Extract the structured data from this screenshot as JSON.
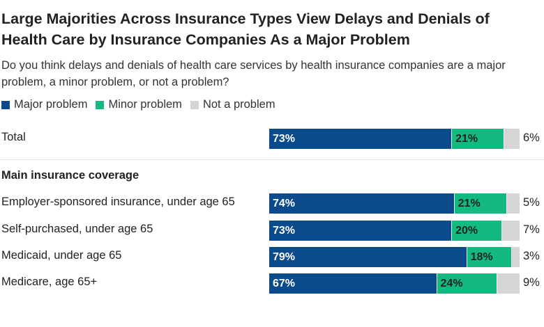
{
  "title": "Large Majorities Across Insurance Types View Delays and Denials of Health Care by Insurance Companies As a Major Problem",
  "subtitle": "Do you think delays and denials of health care services by health insurance companies are a major problem, a minor problem, or not a problem?",
  "colors": {
    "major": "#0b4a8b",
    "minor": "#12b981",
    "not": "#d5d5d5"
  },
  "legend": [
    {
      "label": "Major problem",
      "color": "#0b4a8b"
    },
    {
      "label": "Minor problem",
      "color": "#12b981"
    },
    {
      "label": "Not a problem",
      "color": "#d5d5d5"
    }
  ],
  "section_label": "Main insurance coverage",
  "chart_data": {
    "type": "bar",
    "orientation": "horizontal",
    "stacked": true,
    "categories": [
      "Total",
      "Employer-sponsored insurance, under age 65",
      "Self-purchased, under age 65",
      "Medicaid, under age 65",
      "Medicare, age 65+"
    ],
    "series": [
      {
        "name": "Major problem",
        "values": [
          73,
          74,
          73,
          79,
          67
        ]
      },
      {
        "name": "Minor problem",
        "values": [
          21,
          21,
          20,
          18,
          24
        ]
      },
      {
        "name": "Not a problem",
        "values": [
          6,
          5,
          7,
          3,
          9
        ]
      }
    ],
    "value_labels": [
      [
        "73%",
        "21%",
        "6%"
      ],
      [
        "74%",
        "21%",
        "5%"
      ],
      [
        "73%",
        "20%",
        "7%"
      ],
      [
        "79%",
        "18%",
        "3%"
      ],
      [
        "67%",
        "24%",
        "9%"
      ]
    ],
    "xlim": [
      0,
      100
    ]
  }
}
